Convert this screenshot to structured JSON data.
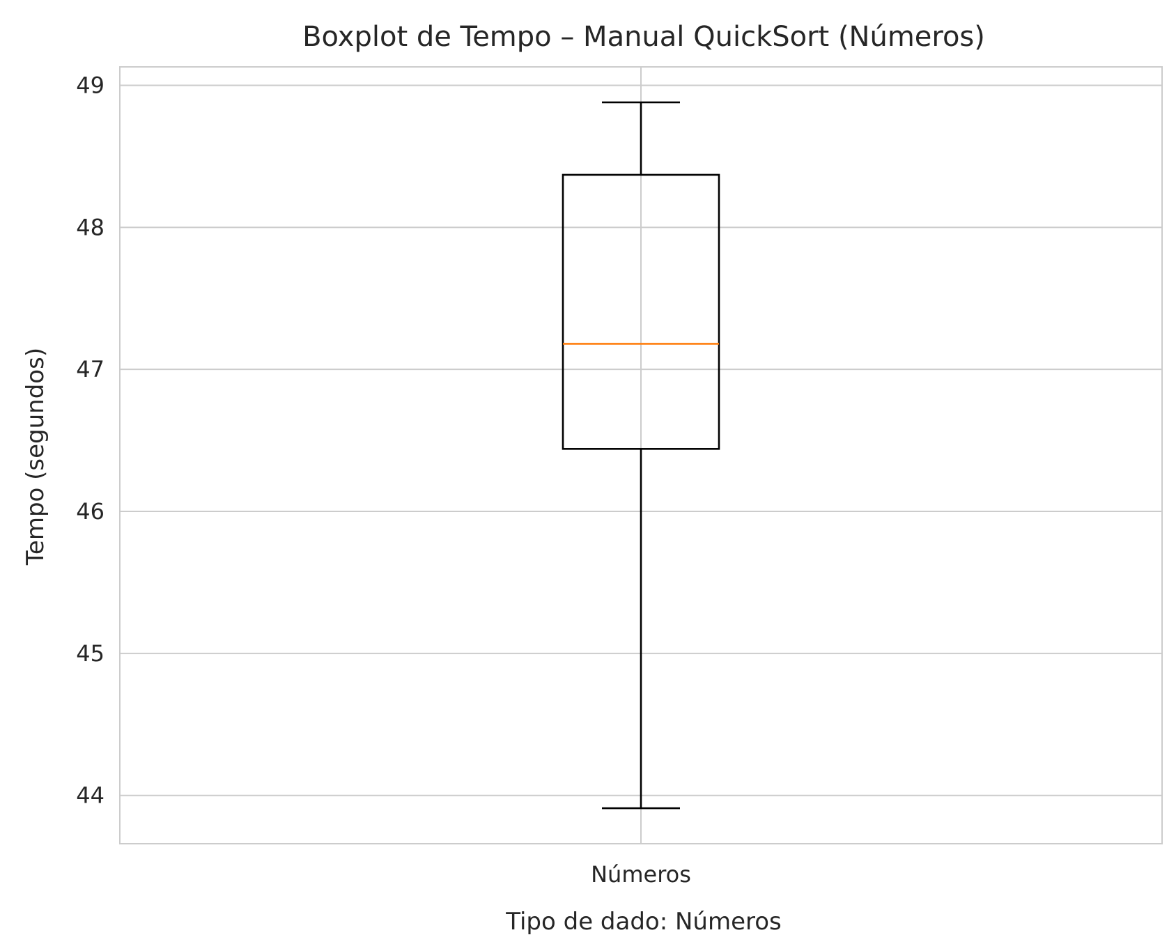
{
  "chart_data": {
    "type": "boxplot",
    "title": "Boxplot de Tempo – Manual QuickSort (Números)",
    "xlabel": "Tipo de dado: Números",
    "ylabel": "Tempo (segundos)",
    "categories": [
      "Números"
    ],
    "yticks": [
      44,
      45,
      46,
      47,
      48,
      49
    ],
    "ylim": [
      43.66,
      49.13
    ],
    "grid": true,
    "box": {
      "whisker_low": 43.91,
      "q1": 46.44,
      "median": 47.18,
      "q3": 48.37,
      "whisker_high": 48.88
    },
    "colors": {
      "median": "#ff7f0e",
      "box": "#000000",
      "grid": "#cccccc"
    }
  }
}
